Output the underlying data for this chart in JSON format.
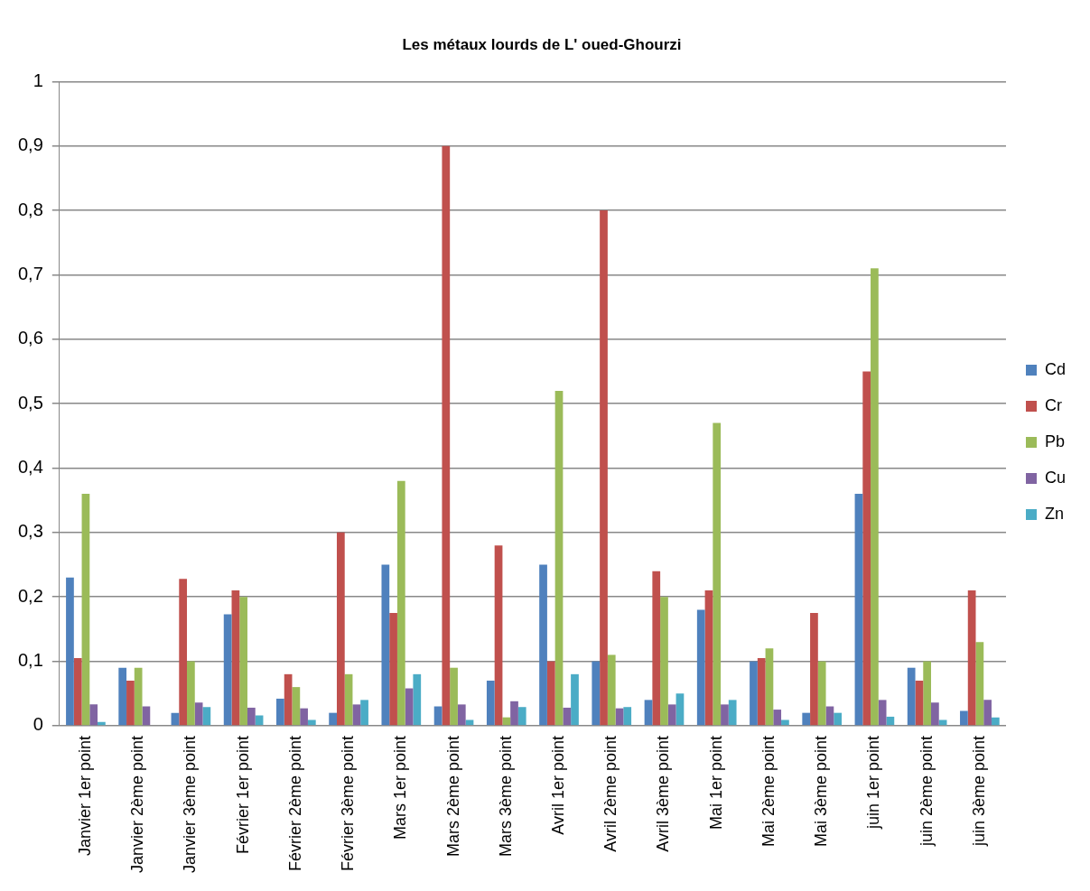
{
  "chart_data": {
    "type": "bar",
    "title": "Les métaux lourds de L' oued-Ghourzi",
    "categories": [
      "Janvier 1er point",
      "Janvier 2ème point",
      "Janvier 3ème point",
      "Février 1er point",
      "Février 2ème point",
      "Février 3ème point",
      "Mars 1er point",
      "Mars 2ème point",
      "Mars 3ème point",
      "Avril 1er point",
      "Avril 2ème point",
      "Avril 3ème point",
      "Mai 1er point",
      "Mai 2ème point",
      "Mai 3ème point",
      "juin 1er point",
      "juin 2ème point",
      "juin 3ème point"
    ],
    "series": [
      {
        "name": "Cd",
        "color": "#4f81bd",
        "values": [
          0.23,
          0.09,
          0.02,
          0.173,
          0.042,
          0.02,
          0.25,
          0.03,
          0.07,
          0.25,
          0.1,
          0.04,
          0.18,
          0.1,
          0.02,
          0.36,
          0.09,
          0.023
        ]
      },
      {
        "name": "Cr",
        "color": "#c0504d",
        "values": [
          0.105,
          0.07,
          0.228,
          0.21,
          0.08,
          0.3,
          0.175,
          0.9,
          0.28,
          0.1,
          0.8,
          0.24,
          0.21,
          0.105,
          0.175,
          0.55,
          0.07,
          0.21
        ]
      },
      {
        "name": "Pb",
        "color": "#9bbb59",
        "values": [
          0.36,
          0.09,
          0.1,
          0.2,
          0.06,
          0.08,
          0.38,
          0.09,
          0.013,
          0.52,
          0.11,
          0.2,
          0.47,
          0.12,
          0.1,
          0.71,
          0.1,
          0.13
        ]
      },
      {
        "name": "Cu",
        "color": "#8064a2",
        "values": [
          0.033,
          0.03,
          0.036,
          0.028,
          0.027,
          0.033,
          0.058,
          0.033,
          0.038,
          0.028,
          0.027,
          0.033,
          0.033,
          0.025,
          0.03,
          0.04,
          0.036,
          0.04
        ]
      },
      {
        "name": "Zn",
        "color": "#4bacc6",
        "values": [
          0.006,
          0,
          0.029,
          0.016,
          0.009,
          0.04,
          0.08,
          0.009,
          0.029,
          0.08,
          0.029,
          0.05,
          0.04,
          0.009,
          0.02,
          0.014,
          0.009,
          0.013
        ]
      }
    ],
    "ylim": [
      0,
      1
    ],
    "yticks": [
      0,
      {
        "value": 0.1,
        "label": "0,1"
      },
      {
        "value": 0.2,
        "label": "0,2"
      },
      {
        "value": 0.3,
        "label": "0,3"
      },
      {
        "value": 0.4,
        "label": "0,4"
      },
      {
        "value": 0.5,
        "label": "0,5"
      },
      {
        "value": 0.6,
        "label": "0,6"
      },
      {
        "value": 0.7,
        "label": "0,7"
      },
      {
        "value": 0.8,
        "label": "0,8"
      },
      {
        "value": 0.9,
        "label": "0,9"
      },
      1
    ],
    "grid": "y",
    "legend": "right"
  }
}
